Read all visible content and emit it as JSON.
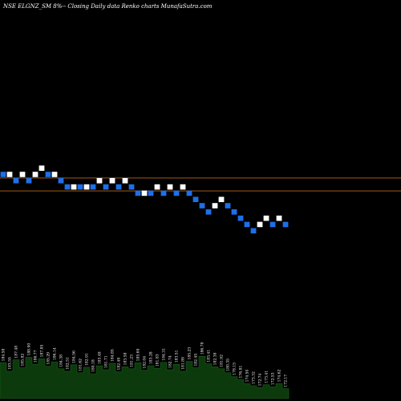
{
  "header": {
    "title": "NSE ELGNZ_SM 8%-- Closing Daily data Renko charts MunafaSutra.com"
  },
  "colors": {
    "background": "#000000",
    "brick_up": "#ffffff",
    "brick_down": "#1e6fe8",
    "reference_line": "#b8651c",
    "volume_fill": "#0c3a0c"
  },
  "chart_data": {
    "type": "renko",
    "title": "NSE ELGNZ_SM 8%-- Closing Daily data Renko charts MunafaSutra.com",
    "brick_size_pct": 8,
    "y_range": [
      -11,
      9
    ],
    "reference_levels": [
      0,
      -2
    ],
    "bricks": [
      {
        "level": 0,
        "dir": "down"
      },
      {
        "level": 0,
        "dir": "up"
      },
      {
        "level": -1,
        "dir": "down"
      },
      {
        "level": 0,
        "dir": "up"
      },
      {
        "level": -1,
        "dir": "down"
      },
      {
        "level": 0,
        "dir": "up"
      },
      {
        "level": 1,
        "dir": "up"
      },
      {
        "level": 0,
        "dir": "down"
      },
      {
        "level": 0,
        "dir": "up"
      },
      {
        "level": -1,
        "dir": "down"
      },
      {
        "level": -2,
        "dir": "down"
      },
      {
        "level": -2,
        "dir": "up"
      },
      {
        "level": -2,
        "dir": "down"
      },
      {
        "level": -2,
        "dir": "up"
      },
      {
        "level": -2,
        "dir": "down"
      },
      {
        "level": -1,
        "dir": "up"
      },
      {
        "level": -2,
        "dir": "down"
      },
      {
        "level": -1,
        "dir": "up"
      },
      {
        "level": -2,
        "dir": "down"
      },
      {
        "level": -1,
        "dir": "up"
      },
      {
        "level": -2,
        "dir": "down"
      },
      {
        "level": -3,
        "dir": "down"
      },
      {
        "level": -3,
        "dir": "up"
      },
      {
        "level": -3,
        "dir": "down"
      },
      {
        "level": -2,
        "dir": "up"
      },
      {
        "level": -3,
        "dir": "down"
      },
      {
        "level": -2,
        "dir": "up"
      },
      {
        "level": -3,
        "dir": "down"
      },
      {
        "level": -2,
        "dir": "up"
      },
      {
        "level": -3,
        "dir": "down"
      },
      {
        "level": -4,
        "dir": "down"
      },
      {
        "level": -5,
        "dir": "down"
      },
      {
        "level": -6,
        "dir": "down"
      },
      {
        "level": -5,
        "dir": "up"
      },
      {
        "level": -4,
        "dir": "up"
      },
      {
        "level": -5,
        "dir": "down"
      },
      {
        "level": -6,
        "dir": "down"
      },
      {
        "level": -7,
        "dir": "down"
      },
      {
        "level": -8,
        "dir": "down"
      },
      {
        "level": -9,
        "dir": "down"
      },
      {
        "level": -8,
        "dir": "up"
      },
      {
        "level": -7,
        "dir": "up"
      },
      {
        "level": -8,
        "dir": "down"
      },
      {
        "level": -7,
        "dir": "up"
      },
      {
        "level": -8,
        "dir": "down"
      }
    ],
    "volume": {
      "values": [
        72,
        55,
        78,
        62,
        83,
        69,
        80,
        65,
        74,
        60,
        55,
        68,
        52,
        63,
        50,
        66,
        58,
        71,
        54,
        64,
        60,
        72,
        57,
        66,
        61,
        73,
        58,
        69,
        55,
        75,
        62,
        85,
        70,
        64,
        60,
        52,
        44,
        38,
        30,
        26,
        22,
        28,
        24,
        30,
        20
      ],
      "labels": [
        "184.58",
        "183.55",
        "187.48",
        "185.82",
        "188.90",
        "186.77",
        "187.85",
        "185.29",
        "186.14",
        "184.38",
        "182.51",
        "184.56",
        "181.62",
        "182.91",
        "180.18",
        "183.48",
        "181.71",
        "184.85",
        "182.49",
        "183.58",
        "181.23",
        "185.69",
        "182.04",
        "183.28",
        "181.83",
        "184.31",
        "182.74",
        "183.51",
        "181.89",
        "185.23",
        "182.45",
        "186.78",
        "183.41",
        "182.38",
        "181.92",
        "180.35",
        "178.15",
        "176.81",
        "174.50",
        "173.32",
        "172.74",
        "173.41",
        "172.53",
        "174.62",
        "172.17"
      ]
    }
  }
}
